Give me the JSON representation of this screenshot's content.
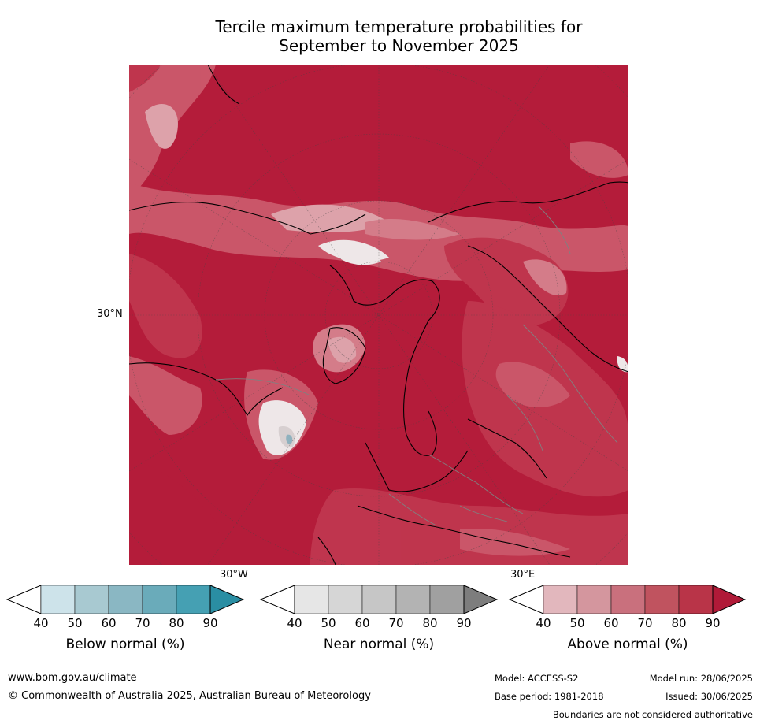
{
  "title_line1": "Tercile maximum temperature probabilities for",
  "title_line2": "September to November 2025",
  "map": {
    "lat_label": "30°N",
    "lon_label_west": "30°W",
    "lon_label_east": "30°E",
    "colors": {
      "above_90": "#b41c3a",
      "above_80": "#c0374f",
      "above_70": "#cc5a6c",
      "above_60": "#d6828e",
      "above_50": "#e0aab0",
      "white": "#f2f2f2",
      "near_light": "#d9d9d9",
      "below": "#8ebac6"
    }
  },
  "colorbars": [
    {
      "title": "Below normal (%)",
      "ticks": [
        "40",
        "50",
        "60",
        "70",
        "80",
        "90"
      ],
      "colors": [
        "#ffffff",
        "#cde3ea",
        "#a8c9d1",
        "#8ab7c3",
        "#6aabba",
        "#45a0b3",
        "#2a8ea3"
      ]
    },
    {
      "title": "Near normal (%)",
      "ticks": [
        "40",
        "50",
        "60",
        "70",
        "80",
        "90"
      ],
      "colors": [
        "#ffffff",
        "#e6e6e6",
        "#d6d6d6",
        "#c6c6c6",
        "#b3b3b3",
        "#a0a0a0",
        "#7d7d7d"
      ]
    },
    {
      "title": "Above normal (%)",
      "ticks": [
        "40",
        "50",
        "60",
        "70",
        "80",
        "90"
      ],
      "colors": [
        "#ffffff",
        "#e2b7bd",
        "#d4969e",
        "#c9707d",
        "#c0535f",
        "#b93448",
        "#b01a38"
      ]
    }
  ],
  "footer": {
    "website": "www.bom.gov.au/climate",
    "copyright": "© Commonwealth of Australia 2025, Australian Bureau of Meteorology",
    "model": "Model: ACCESS-S2",
    "model_run": "Model run: 28/06/2025",
    "base_period": "Base period: 1981-2018",
    "issued": "Issued: 30/06/2025",
    "disclaimer": "Boundaries are not considered authoritative"
  }
}
